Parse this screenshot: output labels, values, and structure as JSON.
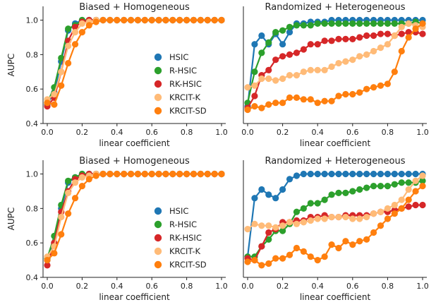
{
  "chart_data": [
    {
      "type": "line",
      "title": "Biased + Homogeneous",
      "xlabel": "linear coefficient",
      "ylabel": "AUPC",
      "xlim": [
        0,
        1
      ],
      "ylim": [
        0.4,
        1.08
      ],
      "xticks": [
        "0.0",
        "0.2",
        "0.4",
        "0.6",
        "0.8",
        "1.0"
      ],
      "yticks": [
        "0.4",
        "0.6",
        "0.8",
        "1.0"
      ],
      "legend": "center-right",
      "x": [
        0,
        0.04,
        0.08,
        0.12,
        0.16,
        0.2,
        0.24,
        0.28,
        0.32,
        0.36,
        0.4,
        0.44,
        0.48,
        0.52,
        0.56,
        0.6,
        0.64,
        0.68,
        0.72,
        0.76,
        0.8,
        0.84,
        0.88,
        0.92,
        0.96,
        1.0
      ],
      "series": [
        {
          "name": "HSIC",
          "color": "#1f77b4",
          "values": [
            0.51,
            0.58,
            0.76,
            0.94,
            0.98,
            1.0,
            1.0,
            1.0,
            1.0,
            1.0,
            1.0,
            1.0,
            1.0,
            1.0,
            1.0,
            1.0,
            1.0,
            1.0,
            1.0,
            1.0,
            1.0,
            1.0,
            1.0,
            1.0,
            1.0,
            1.0
          ]
        },
        {
          "name": "R-HSIC",
          "color": "#2ca02c",
          "values": [
            0.52,
            0.61,
            0.78,
            0.95,
            0.97,
            1.0,
            1.0,
            1.0,
            1.0,
            1.0,
            1.0,
            1.0,
            1.0,
            1.0,
            1.0,
            1.0,
            1.0,
            1.0,
            1.0,
            1.0,
            1.0,
            1.0,
            1.0,
            1.0,
            1.0,
            1.0
          ]
        },
        {
          "name": "RK-HSIC",
          "color": "#d62728",
          "values": [
            0.5,
            0.55,
            0.7,
            0.88,
            0.96,
            0.99,
            1.0,
            1.0,
            1.0,
            1.0,
            1.0,
            1.0,
            1.0,
            1.0,
            1.0,
            1.0,
            1.0,
            1.0,
            1.0,
            1.0,
            1.0,
            1.0,
            1.0,
            1.0,
            1.0,
            1.0
          ]
        },
        {
          "name": "KRCIT-K",
          "color": "#ffbb78",
          "values": [
            0.54,
            0.57,
            0.7,
            0.85,
            0.93,
            0.98,
            0.99,
            1.0,
            1.0,
            1.0,
            1.0,
            1.0,
            1.0,
            1.0,
            1.0,
            1.0,
            1.0,
            1.0,
            1.0,
            1.0,
            1.0,
            1.0,
            1.0,
            1.0,
            1.0,
            1.0
          ]
        },
        {
          "name": "KRCIT-SD",
          "color": "#ff7f0e",
          "values": [
            0.52,
            0.51,
            0.62,
            0.75,
            0.86,
            0.93,
            0.97,
            0.99,
            1.0,
            1.0,
            1.0,
            1.0,
            1.0,
            1.0,
            1.0,
            1.0,
            1.0,
            1.0,
            1.0,
            1.0,
            1.0,
            1.0,
            1.0,
            1.0,
            1.0,
            1.0
          ]
        }
      ]
    },
    {
      "type": "line",
      "title": "Randomized + Heterogeneous",
      "xlabel": "linear coefficient",
      "ylabel": "",
      "xlim": [
        0,
        1
      ],
      "ylim": [
        0.4,
        1.08
      ],
      "xticks": [
        "0.0",
        "0.2",
        "0.4",
        "0.6",
        "0.8",
        "1.0"
      ],
      "yticks": [],
      "legend": "",
      "x": [
        0,
        0.04,
        0.08,
        0.12,
        0.16,
        0.2,
        0.24,
        0.28,
        0.32,
        0.36,
        0.4,
        0.44,
        0.48,
        0.52,
        0.56,
        0.6,
        0.64,
        0.68,
        0.72,
        0.76,
        0.8,
        0.84,
        0.88,
        0.92,
        0.96,
        1.0
      ],
      "series": [
        {
          "name": "HSIC",
          "color": "#1f77b4",
          "values": [
            0.5,
            0.86,
            0.91,
            0.86,
            0.92,
            0.86,
            0.93,
            0.98,
            0.98,
            0.99,
            0.99,
            0.99,
            1.0,
            1.0,
            1.0,
            1.0,
            1.0,
            1.0,
            1.0,
            1.0,
            1.0,
            1.0,
            1.0,
            1.0,
            1.0,
            1.0
          ]
        },
        {
          "name": "R-HSIC",
          "color": "#2ca02c",
          "values": [
            0.52,
            0.7,
            0.81,
            0.87,
            0.93,
            0.94,
            0.96,
            0.97,
            0.97,
            0.97,
            0.98,
            0.98,
            0.98,
            0.98,
            0.98,
            0.98,
            0.98,
            0.98,
            0.98,
            0.98,
            0.98,
            0.98,
            0.98,
            0.98,
            0.99,
            0.98
          ]
        },
        {
          "name": "RK-HSIC",
          "color": "#d62728",
          "values": [
            0.49,
            0.56,
            0.68,
            0.71,
            0.77,
            0.79,
            0.8,
            0.81,
            0.83,
            0.86,
            0.86,
            0.88,
            0.88,
            0.89,
            0.89,
            0.89,
            0.9,
            0.91,
            0.91,
            0.92,
            0.92,
            0.91,
            0.92,
            0.93,
            0.93,
            0.92
          ]
        },
        {
          "name": "KRCIT-K",
          "color": "#ffbb78",
          "values": [
            0.61,
            0.62,
            0.66,
            0.66,
            0.65,
            0.66,
            0.68,
            0.68,
            0.7,
            0.71,
            0.71,
            0.71,
            0.73,
            0.75,
            0.76,
            0.77,
            0.79,
            0.8,
            0.82,
            0.84,
            0.86,
            0.91,
            0.96,
            0.98,
            0.97,
            0.96
          ]
        },
        {
          "name": "KRCIT-SD",
          "color": "#ff7f0e",
          "values": [
            0.48,
            0.5,
            0.49,
            0.51,
            0.52,
            0.52,
            0.55,
            0.55,
            0.54,
            0.54,
            0.52,
            0.53,
            0.53,
            0.56,
            0.57,
            0.57,
            0.58,
            0.6,
            0.61,
            0.62,
            0.63,
            0.7,
            0.82,
            0.9,
            0.95,
            0.98
          ]
        }
      ]
    },
    {
      "type": "line",
      "title": "Biased + Homogeneous",
      "xlabel": "linear coefficient",
      "ylabel": "AUPC",
      "xlim": [
        0,
        1
      ],
      "ylim": [
        0.4,
        1.08
      ],
      "xticks": [
        "0.0",
        "0.2",
        "0.4",
        "0.6",
        "0.8",
        "1.0"
      ],
      "yticks": [
        "0.4",
        "0.6",
        "0.8",
        "1.0"
      ],
      "legend": "center-right",
      "x": [
        0,
        0.04,
        0.08,
        0.12,
        0.16,
        0.2,
        0.24,
        0.28,
        0.32,
        0.36,
        0.4,
        0.44,
        0.48,
        0.52,
        0.56,
        0.6,
        0.64,
        0.68,
        0.72,
        0.76,
        0.8,
        0.84,
        0.88,
        0.92,
        0.96,
        1.0
      ],
      "series": [
        {
          "name": "HSIC",
          "color": "#1f77b4",
          "values": [
            0.5,
            0.6,
            0.8,
            0.95,
            0.98,
            1.0,
            1.0,
            1.0,
            1.0,
            1.0,
            1.0,
            1.0,
            1.0,
            1.0,
            1.0,
            1.0,
            1.0,
            1.0,
            1.0,
            1.0,
            1.0,
            1.0,
            1.0,
            1.0,
            1.0,
            1.0
          ]
        },
        {
          "name": "R-HSIC",
          "color": "#2ca02c",
          "values": [
            0.51,
            0.64,
            0.82,
            0.96,
            0.98,
            1.0,
            1.0,
            1.0,
            1.0,
            1.0,
            1.0,
            1.0,
            1.0,
            1.0,
            1.0,
            1.0,
            1.0,
            1.0,
            1.0,
            1.0,
            1.0,
            1.0,
            1.0,
            1.0,
            1.0,
            1.0
          ]
        },
        {
          "name": "RK-HSIC",
          "color": "#d62728",
          "values": [
            0.47,
            0.6,
            0.78,
            0.9,
            0.97,
            0.99,
            1.0,
            1.0,
            1.0,
            1.0,
            1.0,
            1.0,
            1.0,
            1.0,
            1.0,
            1.0,
            1.0,
            1.0,
            1.0,
            1.0,
            1.0,
            1.0,
            1.0,
            1.0,
            1.0,
            1.0
          ]
        },
        {
          "name": "KRCIT-K",
          "color": "#ffbb78",
          "values": [
            0.52,
            0.58,
            0.75,
            0.89,
            0.95,
            0.98,
            0.99,
            1.0,
            1.0,
            1.0,
            1.0,
            1.0,
            1.0,
            1.0,
            1.0,
            1.0,
            1.0,
            1.0,
            1.0,
            1.0,
            1.0,
            1.0,
            1.0,
            1.0,
            1.0,
            1.0
          ]
        },
        {
          "name": "KRCIT-SD",
          "color": "#ff7f0e",
          "values": [
            0.5,
            0.54,
            0.65,
            0.77,
            0.86,
            0.93,
            0.97,
            0.99,
            1.0,
            1.0,
            1.0,
            1.0,
            1.0,
            1.0,
            1.0,
            1.0,
            1.0,
            1.0,
            1.0,
            1.0,
            1.0,
            1.0,
            1.0,
            1.0,
            1.0,
            1.0
          ]
        }
      ]
    },
    {
      "type": "line",
      "title": "Randomized + Heterogeneous",
      "xlabel": "linear coefficient",
      "ylabel": "",
      "xlim": [
        0,
        1
      ],
      "ylim": [
        0.4,
        1.08
      ],
      "xticks": [
        "0.0",
        "0.2",
        "0.4",
        "0.6",
        "0.8",
        "1.0"
      ],
      "yticks": [],
      "legend": "",
      "x": [
        0,
        0.04,
        0.08,
        0.12,
        0.16,
        0.2,
        0.24,
        0.28,
        0.32,
        0.36,
        0.4,
        0.44,
        0.48,
        0.52,
        0.56,
        0.6,
        0.64,
        0.68,
        0.72,
        0.76,
        0.8,
        0.84,
        0.88,
        0.92,
        0.96,
        1.0
      ],
      "series": [
        {
          "name": "HSIC",
          "color": "#1f77b4",
          "values": [
            0.52,
            0.86,
            0.91,
            0.88,
            0.86,
            0.91,
            0.97,
            0.99,
            1.0,
            1.0,
            1.0,
            1.0,
            1.0,
            1.0,
            1.0,
            1.0,
            1.0,
            1.0,
            1.0,
            1.0,
            1.0,
            1.0,
            1.0,
            1.0,
            1.0,
            1.0
          ]
        },
        {
          "name": "R-HSIC",
          "color": "#2ca02c",
          "values": [
            0.52,
            0.52,
            0.58,
            0.62,
            0.67,
            0.67,
            0.71,
            0.78,
            0.8,
            0.83,
            0.83,
            0.85,
            0.88,
            0.89,
            0.89,
            0.9,
            0.91,
            0.92,
            0.93,
            0.93,
            0.93,
            0.94,
            0.95,
            0.95,
            0.95,
            0.96
          ]
        },
        {
          "name": "RK-HSIC",
          "color": "#d62728",
          "values": [
            0.51,
            0.5,
            0.58,
            0.66,
            0.68,
            0.72,
            0.72,
            0.73,
            0.73,
            0.75,
            0.75,
            0.76,
            0.75,
            0.75,
            0.76,
            0.76,
            0.76,
            0.76,
            0.77,
            0.78,
            0.78,
            0.79,
            0.8,
            0.81,
            0.82,
            0.82
          ]
        },
        {
          "name": "KRCIT-K",
          "color": "#ffbb78",
          "values": [
            0.68,
            0.71,
            0.7,
            0.7,
            0.69,
            0.7,
            0.72,
            0.71,
            0.72,
            0.73,
            0.74,
            0.74,
            0.75,
            0.75,
            0.75,
            0.74,
            0.74,
            0.75,
            0.77,
            0.78,
            0.8,
            0.82,
            0.85,
            0.91,
            0.96,
            0.99
          ]
        },
        {
          "name": "KRCIT-SD",
          "color": "#ff7f0e",
          "values": [
            0.49,
            0.5,
            0.47,
            0.48,
            0.51,
            0.51,
            0.53,
            0.57,
            0.55,
            0.52,
            0.5,
            0.52,
            0.59,
            0.57,
            0.61,
            0.59,
            0.61,
            0.62,
            0.66,
            0.7,
            0.74,
            0.77,
            0.8,
            0.85,
            0.9,
            0.93
          ]
        }
      ]
    }
  ]
}
